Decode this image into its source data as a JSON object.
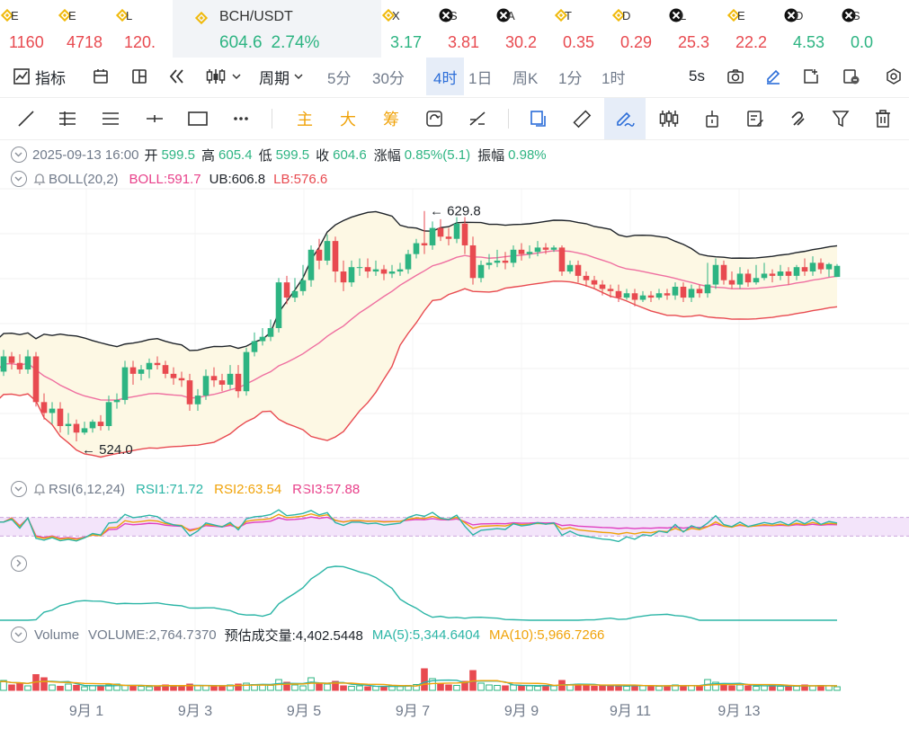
{
  "tickers": [
    {
      "sym": "E",
      "price": "1160",
      "icon": "bnb",
      "dir": "down"
    },
    {
      "sym": "E",
      "price": "4718",
      "icon": "bnb",
      "dir": "down"
    },
    {
      "sym": "L",
      "price": "120.",
      "icon": "bnb",
      "dir": "down"
    },
    {
      "sym": "BCH/USDT",
      "price": "604.6",
      "chg": "2.74%",
      "icon": "bnb",
      "dir": "up",
      "active": true
    },
    {
      "sym": "X",
      "price": "3.17",
      "icon": "bnb",
      "dir": "up"
    },
    {
      "sym": "S",
      "price": "3.81",
      "icon": "cross",
      "dir": "down"
    },
    {
      "sym": "A",
      "price": "30.2",
      "icon": "cross",
      "dir": "down"
    },
    {
      "sym": "T",
      "price": "0.35",
      "icon": "bnb",
      "dir": "down"
    },
    {
      "sym": "D",
      "price": "0.29",
      "icon": "bnb",
      "dir": "down"
    },
    {
      "sym": "L",
      "price": "25.3",
      "icon": "cross",
      "dir": "down"
    },
    {
      "sym": "E",
      "price": "22.2",
      "icon": "bnb",
      "dir": "down"
    },
    {
      "sym": "D",
      "price": "4.53",
      "icon": "cross",
      "dir": "up"
    },
    {
      "sym": "S",
      "price": "0.0",
      "icon": "cross",
      "dir": "up"
    }
  ],
  "toolbar": {
    "indicators": "指标",
    "period": "周期",
    "intervals": [
      "5分",
      "30分",
      "4时",
      "1日",
      "周K",
      "1分",
      "1时"
    ],
    "selected_interval": "4时",
    "refresh": "5s"
  },
  "drawing": {
    "zhu": "主",
    "da": "大",
    "chou": "筹"
  },
  "ohlc": {
    "date": "2025-09-13 16:00",
    "open_label": "开",
    "open": "599.5",
    "high_label": "高",
    "high": "605.4",
    "low_label": "低",
    "low": "599.5",
    "close_label": "收",
    "close": "604.6",
    "chg_label": "涨幅",
    "chg": "0.85%(5.1)",
    "amp_label": "振幅",
    "amp": "0.98%"
  },
  "boll": {
    "name": "BOLL(20,2)",
    "mid": "BOLL:591.7",
    "ub": "UB:606.8",
    "lb": "LB:576.6"
  },
  "rsi": {
    "name": "RSI(6,12,24)",
    "rsi1": "RSI1:71.72",
    "rsi2": "RSI2:63.54",
    "rsi3": "RSI3:57.88"
  },
  "volume": {
    "name": "Volume",
    "vol": "VOLUME:2,764.7370",
    "est": "预估成交量:4,402.5448",
    "ma5": "MA(5):5,344.6404",
    "ma10": "MA(10):5,966.7266"
  },
  "colors": {
    "up": "#2db482",
    "down": "#e84a50",
    "boll_mid": "#ef6fa0",
    "boll_band": "#1e2329",
    "boll_lb": "#e84a50",
    "rsi1": "#2bb5a6",
    "rsi2": "#f0a30a",
    "rsi3": "#e040c0",
    "ma5": "#2bb5a6",
    "ma10": "#f0a30a"
  },
  "chart_data": {
    "type": "candlestick",
    "interval": "4h",
    "x_ticks": [
      "9月 1",
      "9月 3",
      "9月 5",
      "9月 7",
      "9月 9",
      "9月 11",
      "9月 13"
    ],
    "max_label": "629.8",
    "min_label": "524.0",
    "candles": [
      [
        560,
        556,
        563,
        552
      ],
      [
        556,
        563,
        566,
        554
      ],
      [
        563,
        560,
        565,
        557
      ],
      [
        560,
        557,
        564,
        555
      ],
      [
        557,
        563,
        566,
        555
      ],
      [
        563,
        542,
        565,
        540
      ],
      [
        542,
        537,
        546,
        534
      ],
      [
        537,
        539,
        542,
        532
      ],
      [
        539,
        531,
        542,
        528
      ],
      [
        531,
        532,
        537,
        527
      ],
      [
        532,
        528,
        534,
        524
      ],
      [
        528,
        530,
        533,
        527
      ],
      [
        530,
        533,
        534,
        528
      ],
      [
        533,
        531,
        536,
        529
      ],
      [
        531,
        542,
        545,
        529
      ],
      [
        542,
        543,
        546,
        539
      ],
      [
        543,
        558,
        561,
        541
      ],
      [
        558,
        555,
        561,
        550
      ],
      [
        555,
        557,
        559,
        552
      ],
      [
        557,
        560,
        562,
        553
      ],
      [
        560,
        559,
        563,
        557
      ],
      [
        559,
        555,
        561,
        553
      ],
      [
        555,
        553,
        558,
        550
      ],
      [
        553,
        552,
        556,
        549
      ],
      [
        552,
        541,
        555,
        538
      ],
      [
        541,
        545,
        548,
        538
      ],
      [
        545,
        554,
        557,
        543
      ],
      [
        554,
        552,
        558,
        549
      ],
      [
        552,
        550,
        555,
        547
      ],
      [
        550,
        555,
        559,
        548
      ],
      [
        555,
        547,
        559,
        544
      ],
      [
        547,
        565,
        567,
        545
      ],
      [
        565,
        570,
        574,
        563
      ],
      [
        570,
        572,
        576,
        568
      ],
      [
        572,
        576,
        580,
        570
      ],
      [
        576,
        597,
        599,
        574
      ],
      [
        597,
        590,
        600,
        587
      ],
      [
        590,
        593,
        599,
        588
      ],
      [
        593,
        598,
        605,
        591
      ],
      [
        598,
        612,
        614,
        595
      ],
      [
        612,
        607,
        617,
        603
      ],
      [
        607,
        616,
        619,
        605
      ],
      [
        616,
        602,
        618,
        597
      ],
      [
        602,
        597,
        607,
        593
      ],
      [
        597,
        604,
        607,
        595
      ],
      [
        604,
        604,
        608,
        600
      ],
      [
        604,
        602,
        608,
        599
      ],
      [
        602,
        603,
        607,
        600
      ],
      [
        603,
        601,
        605,
        598
      ],
      [
        601,
        602,
        605,
        599
      ],
      [
        602,
        603,
        606,
        600
      ],
      [
        603,
        610,
        612,
        601
      ],
      [
        610,
        615,
        617,
        608
      ],
      [
        615,
        614,
        629.8,
        610
      ],
      [
        614,
        622,
        625,
        612
      ],
      [
        622,
        618,
        626,
        616
      ],
      [
        618,
        617,
        622,
        614
      ],
      [
        617,
        624,
        627,
        615
      ],
      [
        624,
        614,
        627,
        610
      ],
      [
        614,
        599,
        618,
        596
      ],
      [
        599,
        605,
        607,
        597
      ],
      [
        605,
        606,
        610,
        603
      ],
      [
        606,
        607,
        612,
        604
      ],
      [
        607,
        606,
        611,
        603
      ],
      [
        606,
        612,
        614,
        604
      ],
      [
        612,
        610,
        615,
        607
      ],
      [
        610,
        611,
        614,
        608
      ],
      [
        611,
        613,
        616,
        609
      ],
      [
        613,
        612,
        615,
        610
      ],
      [
        612,
        613,
        614,
        611
      ],
      [
        613,
        602,
        614,
        600
      ],
      [
        602,
        605,
        607,
        601
      ],
      [
        605,
        600,
        607,
        597
      ],
      [
        600,
        598,
        602,
        595
      ],
      [
        598,
        596,
        600,
        594
      ],
      [
        596,
        594,
        598,
        591
      ],
      [
        594,
        593,
        596,
        590
      ],
      [
        593,
        590,
        596,
        588
      ],
      [
        590,
        592,
        594,
        589
      ],
      [
        592,
        589,
        594,
        586
      ],
      [
        589,
        591,
        593,
        588
      ],
      [
        591,
        590,
        593,
        588
      ],
      [
        590,
        592,
        594,
        589
      ],
      [
        592,
        591,
        594,
        589
      ],
      [
        591,
        595,
        597,
        589
      ],
      [
        595,
        590,
        597,
        588
      ],
      [
        590,
        594,
        596,
        588
      ],
      [
        594,
        592,
        596,
        590
      ],
      [
        592,
        596,
        606,
        590
      ],
      [
        596,
        605,
        608,
        594
      ],
      [
        605,
        598,
        607,
        596
      ],
      [
        598,
        596,
        602,
        594
      ],
      [
        596,
        601,
        604,
        594
      ],
      [
        601,
        597,
        603,
        595
      ],
      [
        597,
        599,
        605,
        596
      ],
      [
        599,
        601,
        606,
        598
      ],
      [
        601,
        600,
        603,
        597
      ],
      [
        600,
        602,
        605,
        598
      ],
      [
        602,
        600,
        604,
        596
      ],
      [
        600,
        604,
        605,
        598
      ],
      [
        604,
        602,
        608,
        600
      ],
      [
        602,
        606,
        609,
        600
      ],
      [
        606,
        603,
        608,
        601
      ],
      [
        603,
        605.4,
        606,
        599.5
      ],
      [
        599.5,
        604.6,
        605.4,
        599.5
      ]
    ],
    "volume_ylim": [
      0,
      100
    ],
    "volumes": [
      18,
      22,
      12,
      15,
      10,
      35,
      28,
      12,
      9,
      14,
      11,
      8,
      10,
      9,
      12,
      14,
      11,
      10,
      9,
      8,
      10,
      12,
      10,
      9,
      14,
      11,
      10,
      9,
      8,
      12,
      14,
      16,
      13,
      12,
      11,
      24,
      18,
      12,
      10,
      28,
      15,
      14,
      20,
      10,
      9,
      10,
      8,
      9,
      8,
      10,
      9,
      11,
      13,
      48,
      26,
      15,
      12,
      11,
      20,
      44,
      16,
      12,
      11,
      10,
      12,
      11,
      10,
      9,
      11,
      10,
      22,
      12,
      14,
      10,
      9,
      11,
      10,
      12,
      9,
      10,
      11,
      10,
      9,
      10,
      12,
      10,
      11,
      10,
      24,
      18,
      14,
      10,
      12,
      10,
      9,
      10,
      11,
      9,
      10,
      9,
      12,
      10,
      11,
      10,
      8
    ],
    "rsi_ylim": [
      0,
      100
    ],
    "rsi_bands": [
      30,
      70
    ]
  }
}
